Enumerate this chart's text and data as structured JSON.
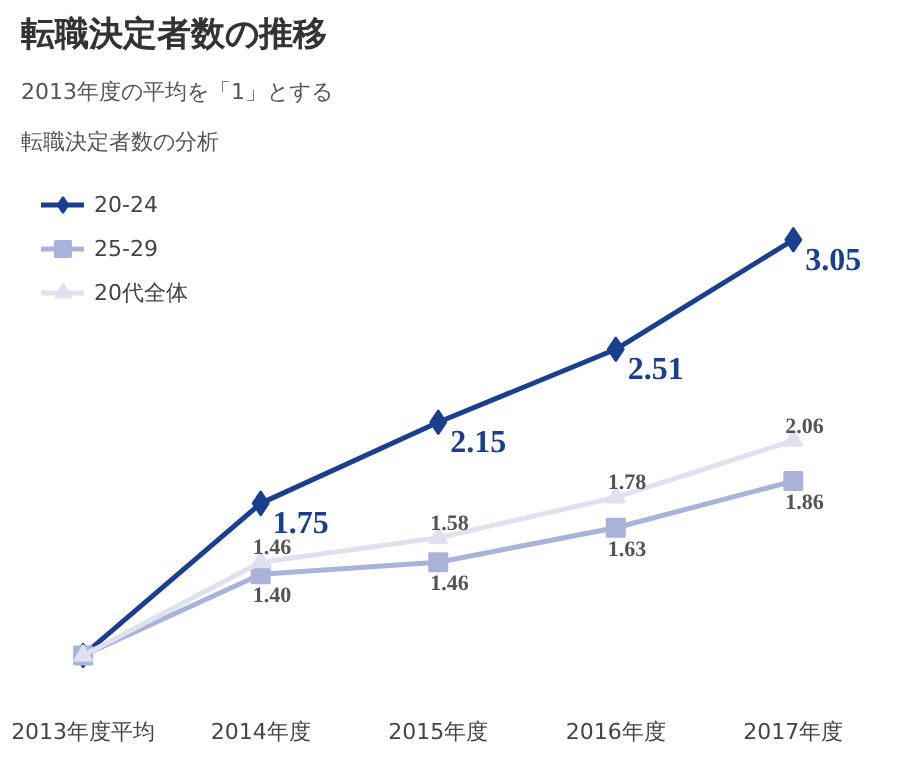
{
  "chart_data": {
    "type": "line",
    "title": "転職決定者数の推移",
    "subtitle": "2013年度の平均を「1」とする",
    "annotations": [
      "転職決定者数の分析"
    ],
    "categories": [
      "2013年度平均",
      "2014年度",
      "2015年度",
      "2016年度",
      "2017年度"
    ],
    "tick_labels": "x",
    "grid": false,
    "legend": "top left",
    "line_style": "solid",
    "series": [
      {
        "name": "20-24",
        "color": "#1b3f8f",
        "marker": "diamond",
        "values": [
          1,
          1.75,
          2.15,
          2.51,
          3.05
        ],
        "value_labels": [
          null,
          "1.75",
          "2.15",
          "2.51",
          "3.05"
        ]
      },
      {
        "name": "25-29",
        "color": "#a9b2d8",
        "marker": "square",
        "values": [
          1,
          1.4,
          1.46,
          1.63,
          1.86
        ],
        "value_labels": [
          null,
          "1.40",
          "1.46",
          "1.63",
          "1.86"
        ]
      },
      {
        "name": "20代全体",
        "color": "#dfe1ef",
        "marker": "triangle",
        "values": [
          1,
          1.46,
          1.58,
          1.78,
          2.06
        ],
        "value_labels": [
          null,
          "1.46",
          "1.58",
          "1.78",
          "2.06"
        ]
      }
    ]
  }
}
